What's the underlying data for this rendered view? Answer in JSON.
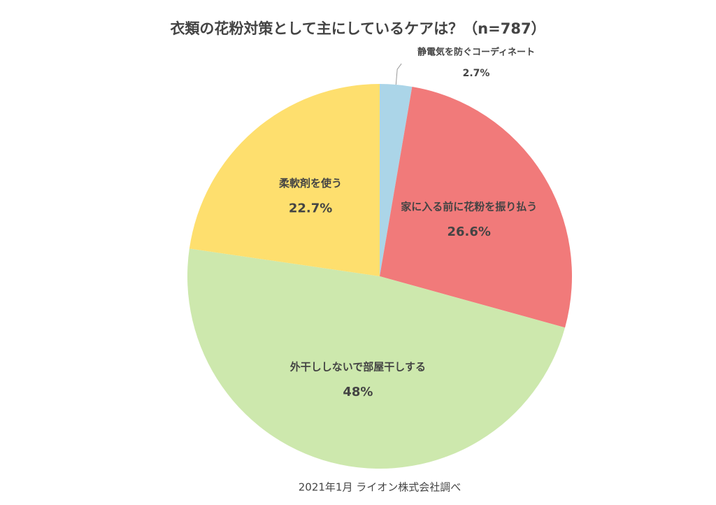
{
  "chart_data": {
    "type": "pie",
    "title": "衣類の花粉対策として主にしているケアは？（n=787）",
    "categories": [
      "静電気を防ぐコーディネート",
      "家に入る前に花粉を振り払う",
      "外干ししないで部屋干しする",
      "柔軟剤を使う"
    ],
    "values": [
      2.7,
      26.6,
      48,
      22.7
    ],
    "value_labels": [
      "2.7%",
      "26.6%",
      "48%",
      "22.7%"
    ],
    "colors": [
      "#abd5e8",
      "#f17a7a",
      "#cde8ad",
      "#fedf6e"
    ],
    "source": "2021年1月 ライオン株式会社調べ"
  }
}
